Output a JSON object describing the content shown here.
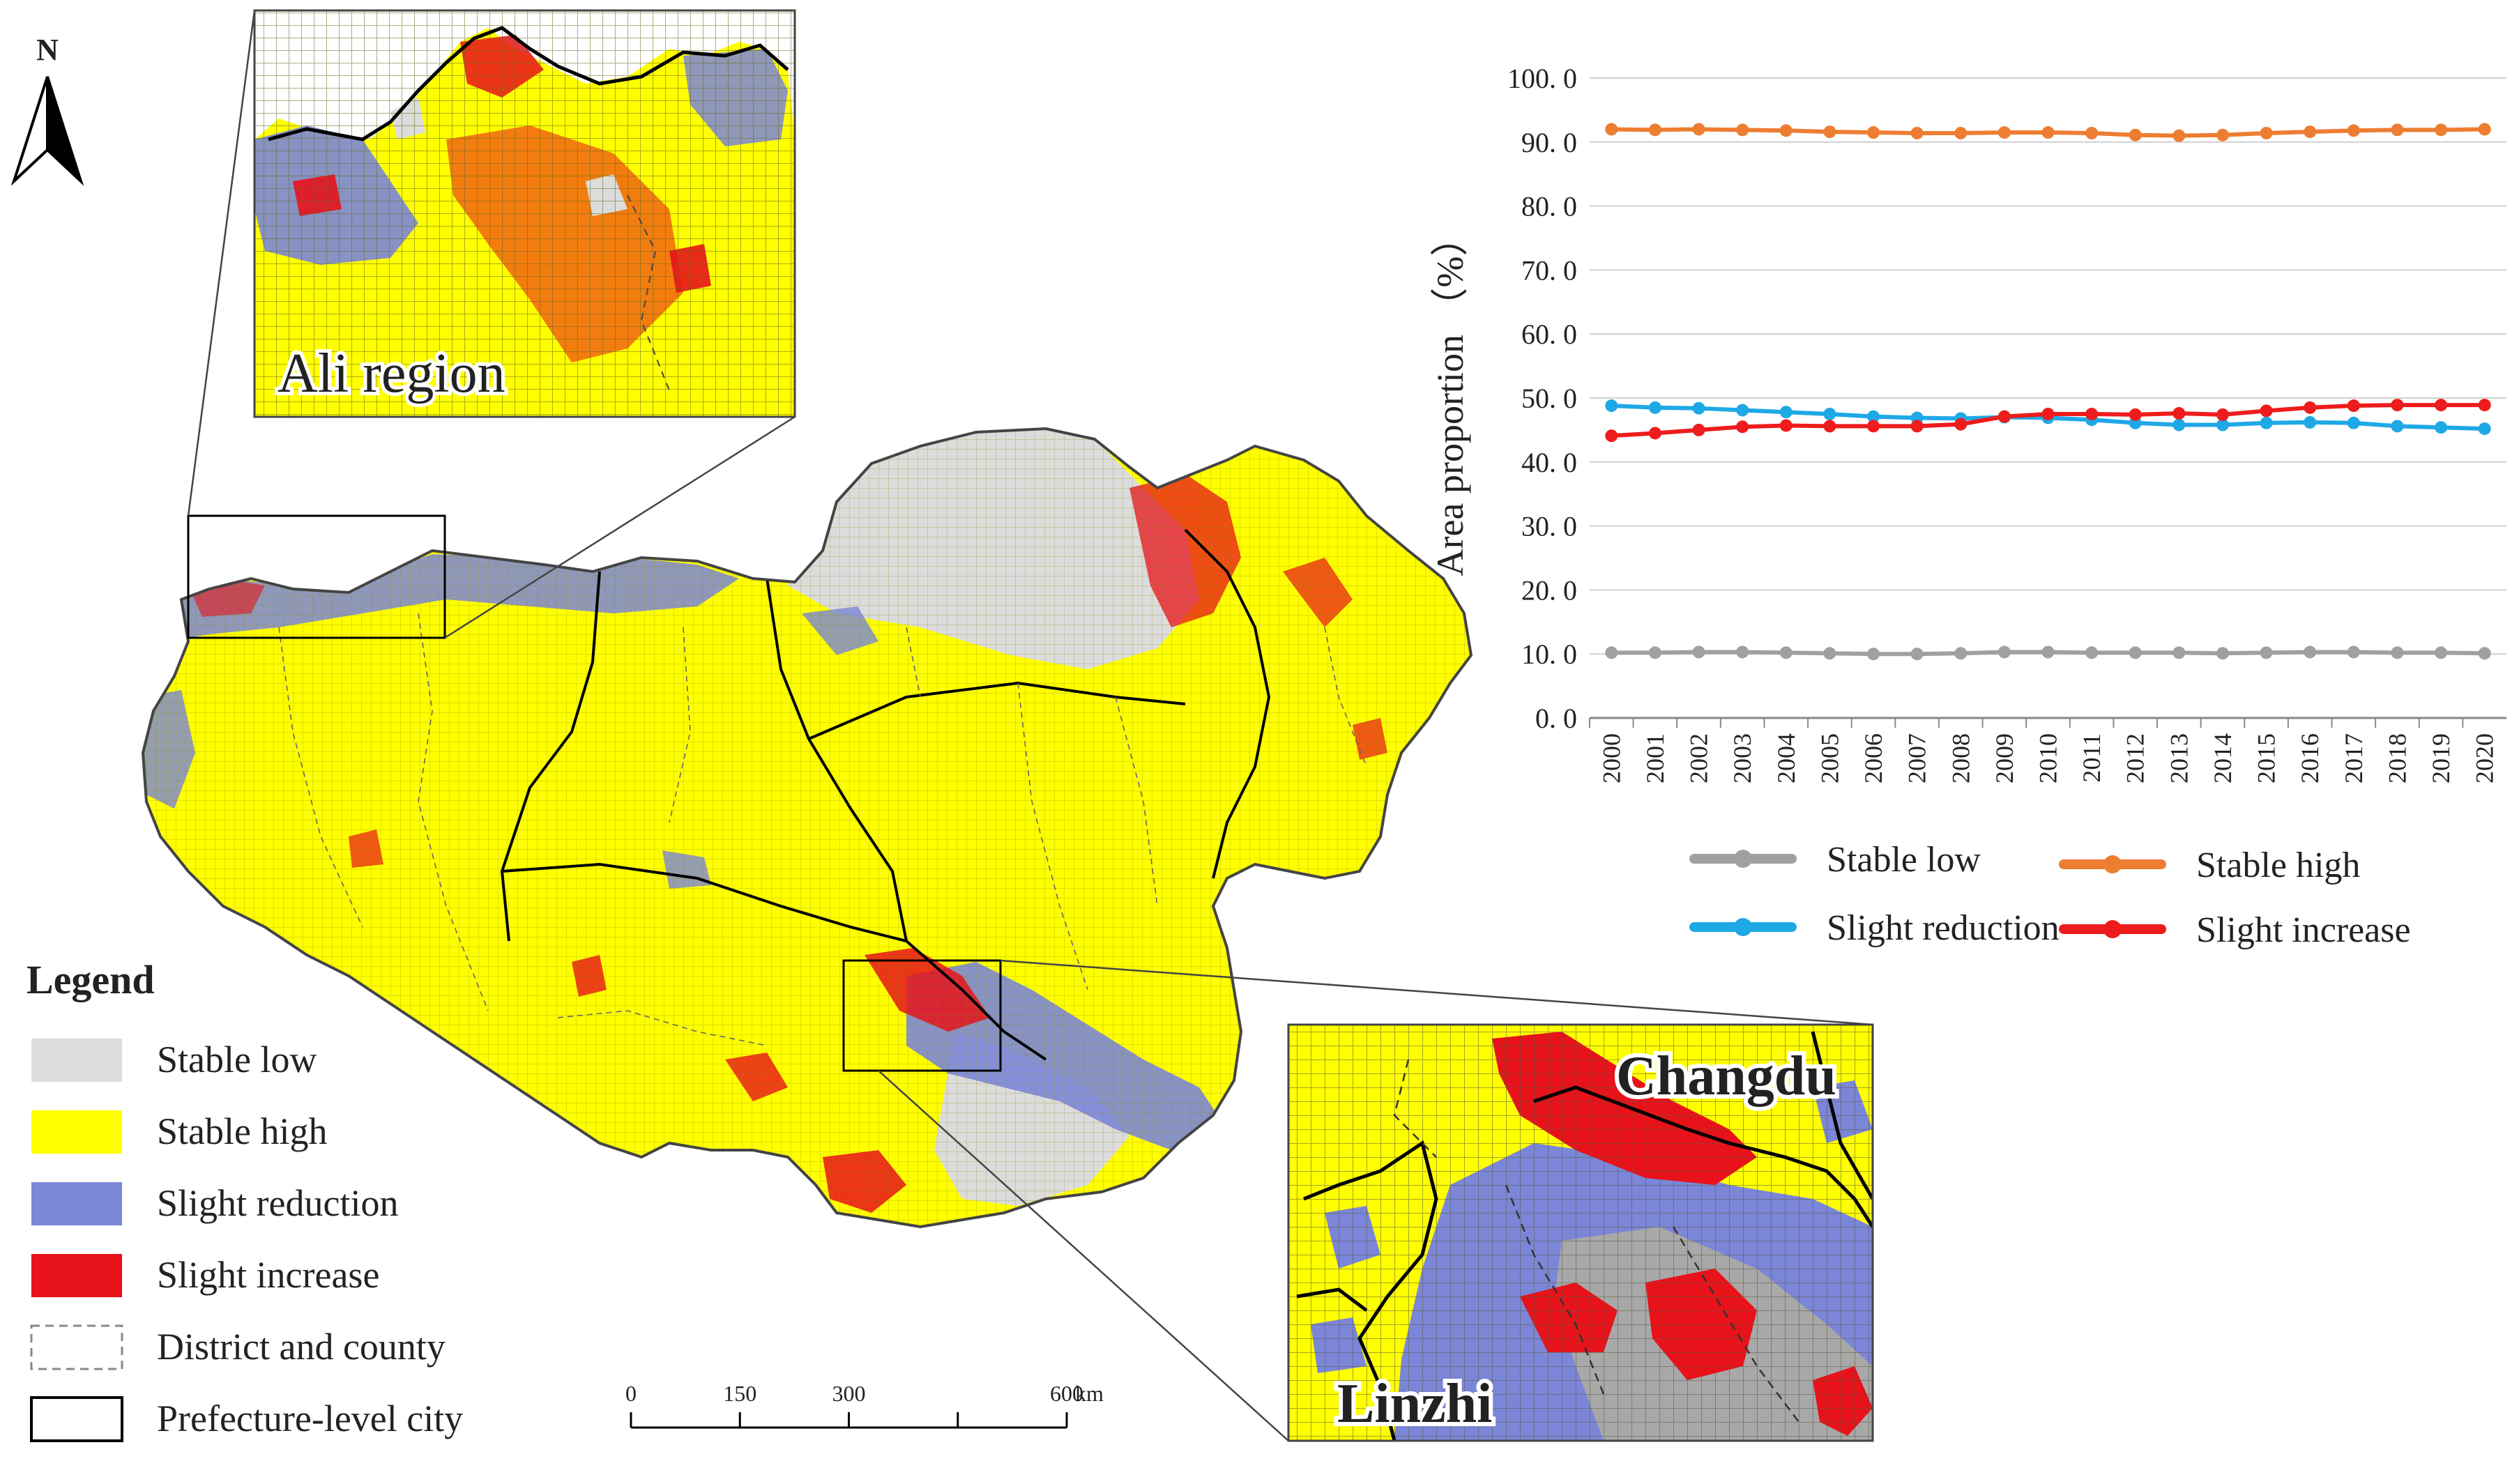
{
  "north_label": "N",
  "insets": {
    "ali": {
      "label": "Ali region"
    },
    "changdu_linzhi": {
      "label_top": "Changdu",
      "label_bottom": "Linzhi"
    }
  },
  "legend": {
    "title": "Legend",
    "items": [
      {
        "label": "Stable low",
        "color": "#dcdcdc",
        "style": "fill"
      },
      {
        "label": "Stable high",
        "color": "#ffff00",
        "style": "fill"
      },
      {
        "label": "Slight reduction",
        "color": "#7b86d8",
        "style": "fill"
      },
      {
        "label": "Slight increase",
        "color": "#e8121a",
        "style": "fill"
      },
      {
        "label": "District and county",
        "color": "#888888",
        "style": "dashed"
      },
      {
        "label": "Prefecture-level city",
        "color": "#000000",
        "style": "solid"
      }
    ]
  },
  "scale_bar": {
    "ticks": [
      "0",
      "150",
      "300",
      "600"
    ],
    "unit": "km"
  },
  "chart_data": {
    "type": "line",
    "ylabel": "Area proportion （%）",
    "ylim": [
      0,
      100
    ],
    "yticks": [
      "0. 0",
      "10. 0",
      "20. 0",
      "30. 0",
      "40. 0",
      "50. 0",
      "60. 0",
      "70. 0",
      "80. 0",
      "90. 0",
      "100. 0"
    ],
    "x": [
      "2000",
      "2001",
      "2002",
      "2003",
      "2004",
      "2005",
      "2006",
      "2007",
      "2008",
      "2009",
      "2010",
      "2011",
      "2012",
      "2013",
      "2014",
      "2015",
      "2016",
      "2017",
      "2018",
      "2019",
      "2020"
    ],
    "grid": true,
    "legend_position": "bottom",
    "series": [
      {
        "name": "Stable low",
        "color": "#a0a0a0",
        "values": [
          10.2,
          10.2,
          10.3,
          10.3,
          10.2,
          10.1,
          10.0,
          10.0,
          10.1,
          10.3,
          10.3,
          10.2,
          10.2,
          10.2,
          10.1,
          10.2,
          10.3,
          10.3,
          10.2,
          10.2,
          10.1
        ]
      },
      {
        "name": "Stable high",
        "color": "#ed7d31",
        "values": [
          92.0,
          91.9,
          92.0,
          91.9,
          91.8,
          91.6,
          91.5,
          91.4,
          91.4,
          91.5,
          91.5,
          91.4,
          91.1,
          91.0,
          91.1,
          91.4,
          91.6,
          91.8,
          91.9,
          91.9,
          92.0
        ]
      },
      {
        "name": "Slight reduction",
        "color": "#1fa8e6",
        "values": [
          48.8,
          48.5,
          48.4,
          48.1,
          47.8,
          47.5,
          47.1,
          46.9,
          46.8,
          47.0,
          46.9,
          46.6,
          46.1,
          45.8,
          45.8,
          46.1,
          46.2,
          46.1,
          45.6,
          45.4,
          45.2
        ]
      },
      {
        "name": "Slight increase",
        "color": "#ee1c1c",
        "values": [
          44.1,
          44.5,
          45.0,
          45.5,
          45.7,
          45.6,
          45.6,
          45.6,
          45.9,
          47.1,
          47.5,
          47.5,
          47.4,
          47.6,
          47.4,
          48.0,
          48.5,
          48.8,
          48.9,
          48.9,
          48.9
        ]
      }
    ]
  }
}
